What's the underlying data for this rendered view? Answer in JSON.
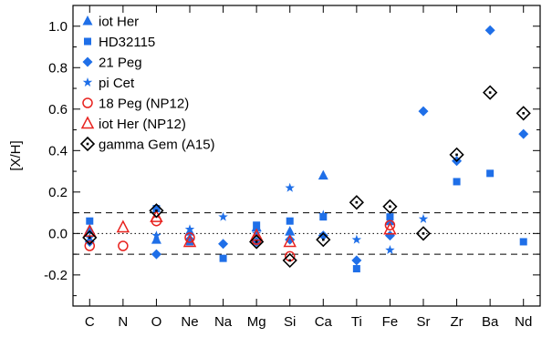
{
  "chart_data": {
    "type": "scatter",
    "title": "",
    "xlabel": "",
    "ylabel": "[X/H]",
    "ylim": [
      -0.35,
      1.1
    ],
    "y_ticks": [
      "-0.2",
      "0.0",
      "0.2",
      "0.4",
      "0.6",
      "0.8",
      "1.0"
    ],
    "y_tick_values": [
      -0.2,
      0.0,
      0.2,
      0.4,
      0.6,
      0.8,
      1.0
    ],
    "categories": [
      "C",
      "N",
      "O",
      "Ne",
      "Na",
      "Mg",
      "Si",
      "Ca",
      "Ti",
      "Fe",
      "Sr",
      "Zr",
      "Ba",
      "Nd"
    ],
    "reference_lines": [
      {
        "y": 0.1,
        "style": "dashed"
      },
      {
        "y": 0.0,
        "style": "dotted"
      },
      {
        "y": -0.1,
        "style": "dashed"
      }
    ],
    "legend_position": "top-left",
    "colors": {
      "blue": "#1f6fe8",
      "red": "#e8231f",
      "black": "#000000"
    },
    "series": [
      {
        "name": "iot Her",
        "marker": "triangle-filled",
        "color": "#1f6fe8",
        "points": [
          [
            "C",
            0.02
          ],
          [
            "O",
            -0.03
          ],
          [
            "Ne",
            0.01
          ],
          [
            "Mg",
            0.03
          ],
          [
            "Si",
            0.01
          ],
          [
            "Ca",
            0.28
          ],
          [
            "Fe",
            0.06
          ]
        ]
      },
      {
        "name": "HD32115",
        "marker": "square-filled",
        "color": "#1f6fe8",
        "points": [
          [
            "C",
            0.06
          ],
          [
            "O",
            0.12
          ],
          [
            "Ne",
            -0.04
          ],
          [
            "Na",
            -0.12
          ],
          [
            "Mg",
            0.04
          ],
          [
            "Si",
            0.06
          ],
          [
            "Ca",
            0.08
          ],
          [
            "Ti",
            -0.17
          ],
          [
            "Fe",
            0.08
          ],
          [
            "Zr",
            0.25
          ],
          [
            "Ba",
            0.29
          ],
          [
            "Nd",
            -0.04
          ]
        ]
      },
      {
        "name": "21 Peg",
        "marker": "diamond-filled",
        "color": "#1f6fe8",
        "points": [
          [
            "C",
            -0.04
          ],
          [
            "O",
            -0.1
          ],
          [
            "Ne",
            -0.03
          ],
          [
            "Na",
            -0.05
          ],
          [
            "Mg",
            -0.04
          ],
          [
            "Si",
            -0.03
          ],
          [
            "Ca",
            -0.01
          ],
          [
            "Ti",
            -0.13
          ],
          [
            "Fe",
            -0.01
          ],
          [
            "Sr",
            0.59
          ],
          [
            "Zr",
            0.35
          ],
          [
            "Ba",
            0.98
          ],
          [
            "Nd",
            0.48
          ]
        ]
      },
      {
        "name": "pi Cet",
        "marker": "star",
        "color": "#1f6fe8",
        "points": [
          [
            "C",
            -0.02
          ],
          [
            "O",
            -0.01
          ],
          [
            "Ne",
            0.02
          ],
          [
            "Na",
            0.08
          ],
          [
            "Mg",
            0.0
          ],
          [
            "Si",
            0.22
          ],
          [
            "Ca",
            0.09
          ],
          [
            "Ti",
            -0.03
          ],
          [
            "Fe",
            -0.08
          ],
          [
            "Sr",
            0.07
          ]
        ]
      },
      {
        "name": "18 Peg (NP12)",
        "marker": "circle-open",
        "color": "#e8231f",
        "points": [
          [
            "C",
            -0.06
          ],
          [
            "N",
            -0.06
          ],
          [
            "O",
            0.06
          ],
          [
            "Ne",
            -0.02
          ],
          [
            "Mg",
            -0.03
          ],
          [
            "Si",
            -0.11
          ],
          [
            "Fe",
            0.04
          ]
        ]
      },
      {
        "name": "iot Her (NP12)",
        "marker": "triangle-open",
        "color": "#e8231f",
        "points": [
          [
            "C",
            0.01
          ],
          [
            "N",
            0.03
          ],
          [
            "O",
            0.08
          ],
          [
            "Ne",
            -0.04
          ],
          [
            "Mg",
            -0.01
          ],
          [
            "Si",
            -0.04
          ],
          [
            "Fe",
            0.02
          ]
        ]
      },
      {
        "name": "gamma Gem (A15)",
        "marker": "diamond-open",
        "color": "#000000",
        "points": [
          [
            "C",
            -0.02
          ],
          [
            "O",
            0.11
          ],
          [
            "Mg",
            -0.04
          ],
          [
            "Si",
            -0.13
          ],
          [
            "Ca",
            -0.03
          ],
          [
            "Ti",
            0.15
          ],
          [
            "Fe",
            0.13
          ],
          [
            "Sr",
            0.0
          ],
          [
            "Zr",
            0.38
          ],
          [
            "Ba",
            0.68
          ],
          [
            "Nd",
            0.58
          ]
        ]
      }
    ]
  }
}
